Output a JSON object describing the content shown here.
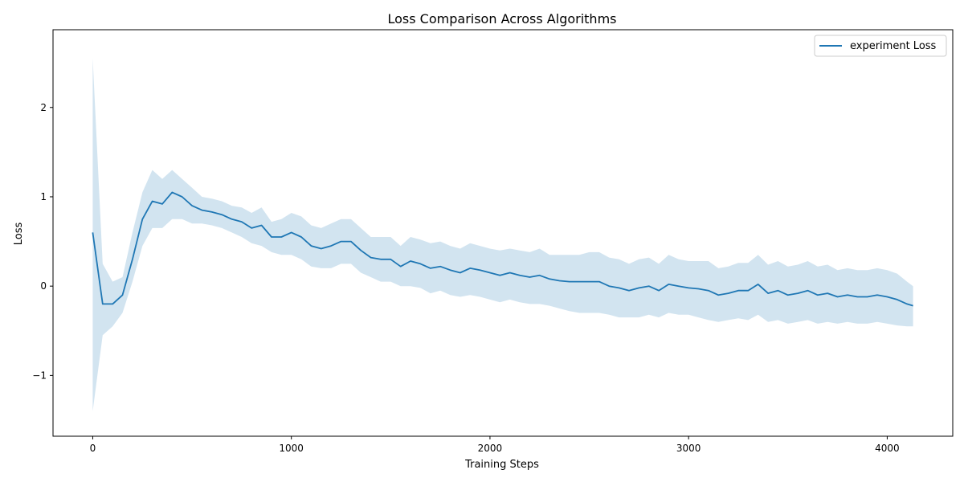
{
  "chart_data": {
    "type": "line",
    "title": "Loss Comparison Across Algorithms",
    "xlabel": "Training Steps",
    "ylabel": "Loss",
    "xlim": [
      -200,
      4330
    ],
    "ylim": [
      -1.68,
      2.87
    ],
    "xticks": [
      0,
      1000,
      2000,
      3000,
      4000
    ],
    "xtick_labels": [
      "0",
      "1000",
      "2000",
      "3000",
      "4000"
    ],
    "yticks": [
      -1,
      0,
      1,
      2
    ],
    "ytick_labels": [
      "−1",
      "0",
      "1",
      "2"
    ],
    "grid": false,
    "legend_position": "upper right",
    "colors": {
      "line": "#1f77b4",
      "band": "#1f77b4"
    },
    "series": [
      {
        "name": "experiment Loss",
        "x": [
          0,
          50,
          100,
          150,
          200,
          250,
          300,
          350,
          400,
          450,
          500,
          550,
          600,
          650,
          700,
          750,
          800,
          850,
          900,
          950,
          1000,
          1050,
          1100,
          1150,
          1200,
          1250,
          1300,
          1350,
          1400,
          1450,
          1500,
          1550,
          1600,
          1650,
          1700,
          1750,
          1800,
          1850,
          1900,
          1950,
          2000,
          2050,
          2100,
          2150,
          2200,
          2250,
          2300,
          2350,
          2400,
          2450,
          2500,
          2550,
          2600,
          2650,
          2700,
          2750,
          2800,
          2850,
          2900,
          2950,
          3000,
          3050,
          3100,
          3150,
          3200,
          3250,
          3300,
          3350,
          3400,
          3450,
          3500,
          3550,
          3600,
          3650,
          3700,
          3750,
          3800,
          3850,
          3900,
          3950,
          4000,
          4050,
          4100,
          4130
        ],
        "y": [
          0.6,
          -0.2,
          -0.2,
          -0.1,
          0.3,
          0.75,
          0.95,
          0.92,
          1.05,
          1.0,
          0.9,
          0.85,
          0.83,
          0.8,
          0.75,
          0.72,
          0.65,
          0.68,
          0.55,
          0.55,
          0.6,
          0.55,
          0.45,
          0.42,
          0.45,
          0.5,
          0.5,
          0.4,
          0.32,
          0.3,
          0.3,
          0.22,
          0.28,
          0.25,
          0.2,
          0.22,
          0.18,
          0.15,
          0.2,
          0.18,
          0.15,
          0.12,
          0.15,
          0.12,
          0.1,
          0.12,
          0.08,
          0.06,
          0.05,
          0.05,
          0.05,
          0.05,
          0.0,
          -0.02,
          -0.05,
          -0.02,
          0.0,
          -0.05,
          0.02,
          0.0,
          -0.02,
          -0.03,
          -0.05,
          -0.1,
          -0.08,
          -0.05,
          -0.05,
          0.02,
          -0.08,
          -0.05,
          -0.1,
          -0.08,
          -0.05,
          -0.1,
          -0.08,
          -0.12,
          -0.1,
          -0.12,
          -0.12,
          -0.1,
          -0.12,
          -0.15,
          -0.2,
          -0.22
        ],
        "band_lower": [
          -1.4,
          -0.55,
          -0.45,
          -0.3,
          0.05,
          0.45,
          0.65,
          0.65,
          0.75,
          0.75,
          0.7,
          0.7,
          0.68,
          0.65,
          0.6,
          0.55,
          0.48,
          0.45,
          0.38,
          0.35,
          0.35,
          0.3,
          0.22,
          0.2,
          0.2,
          0.25,
          0.25,
          0.15,
          0.1,
          0.05,
          0.05,
          0.0,
          0.0,
          -0.02,
          -0.08,
          -0.05,
          -0.1,
          -0.12,
          -0.1,
          -0.12,
          -0.15,
          -0.18,
          -0.15,
          -0.18,
          -0.2,
          -0.2,
          -0.22,
          -0.25,
          -0.28,
          -0.3,
          -0.3,
          -0.3,
          -0.32,
          -0.35,
          -0.35,
          -0.35,
          -0.32,
          -0.35,
          -0.3,
          -0.32,
          -0.32,
          -0.35,
          -0.38,
          -0.4,
          -0.38,
          -0.36,
          -0.38,
          -0.32,
          -0.4,
          -0.38,
          -0.42,
          -0.4,
          -0.38,
          -0.42,
          -0.4,
          -0.42,
          -0.4,
          -0.42,
          -0.42,
          -0.4,
          -0.42,
          -0.44,
          -0.45,
          -0.45
        ],
        "band_upper": [
          2.55,
          0.25,
          0.05,
          0.1,
          0.6,
          1.05,
          1.3,
          1.2,
          1.3,
          1.2,
          1.1,
          1.0,
          0.98,
          0.95,
          0.9,
          0.88,
          0.82,
          0.88,
          0.72,
          0.75,
          0.82,
          0.78,
          0.68,
          0.65,
          0.7,
          0.75,
          0.75,
          0.65,
          0.55,
          0.55,
          0.55,
          0.45,
          0.55,
          0.52,
          0.48,
          0.5,
          0.45,
          0.42,
          0.48,
          0.45,
          0.42,
          0.4,
          0.42,
          0.4,
          0.38,
          0.42,
          0.35,
          0.35,
          0.35,
          0.35,
          0.38,
          0.38,
          0.32,
          0.3,
          0.25,
          0.3,
          0.32,
          0.25,
          0.35,
          0.3,
          0.28,
          0.28,
          0.28,
          0.2,
          0.22,
          0.26,
          0.26,
          0.35,
          0.24,
          0.28,
          0.22,
          0.24,
          0.28,
          0.22,
          0.24,
          0.18,
          0.2,
          0.18,
          0.18,
          0.2,
          0.18,
          0.14,
          0.05,
          0.0
        ]
      }
    ]
  }
}
